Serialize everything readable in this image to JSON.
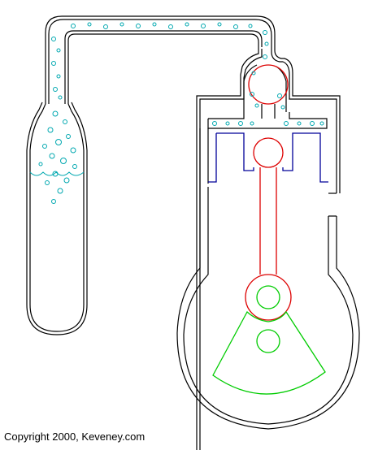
{
  "copyright": "Copyright 2000, Keveney.com",
  "colors": {
    "outline": "#000000",
    "bubbles": "#00a8b0",
    "piston": "#000099",
    "connecting_rod": "#dd0000",
    "crank": "#00cc00",
    "background": "#ffffff"
  },
  "parts": [
    "tank-tube",
    "connecting-pipe",
    "valve",
    "cylinder",
    "piston",
    "connecting-rod",
    "crankshaft-counterweight",
    "crankcase"
  ]
}
